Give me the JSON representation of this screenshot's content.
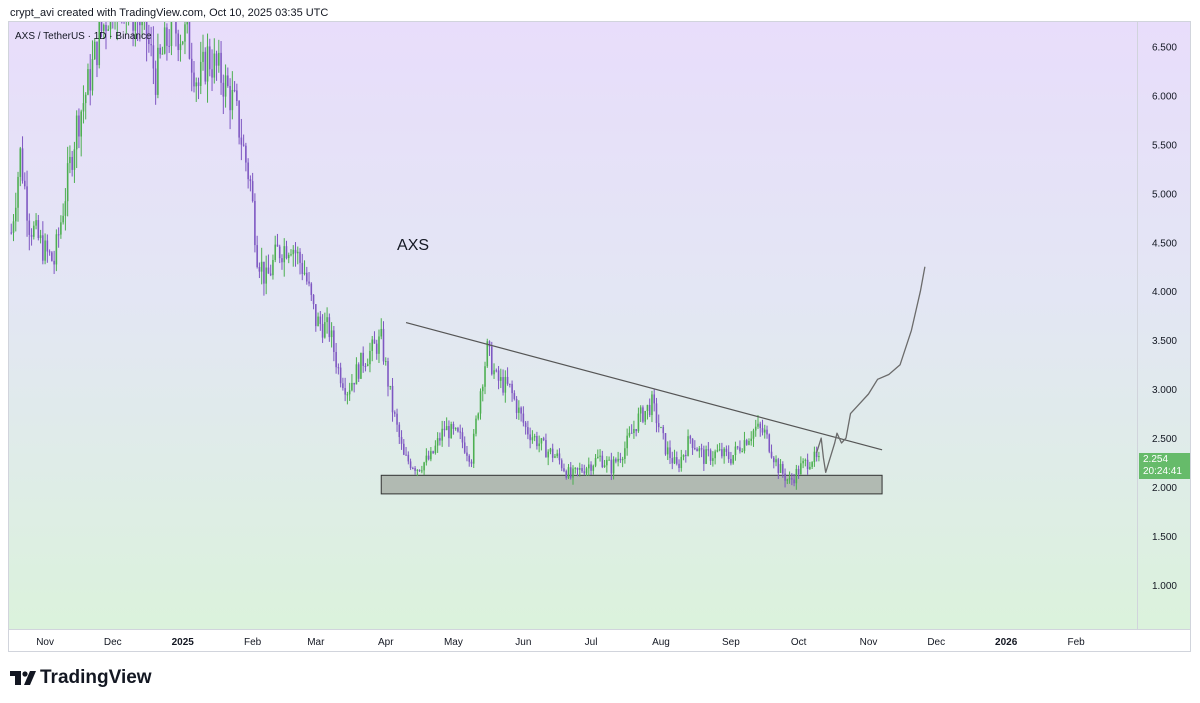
{
  "header": "crypt_avi created with TradingView.com, Oct 10, 2025 03:35 UTC",
  "symbol_line": "AXS / TetherUS · 1D · Binance",
  "brand": "TradingView",
  "price_tag": {
    "price": "2.254",
    "countdown": "20:24:41",
    "color": "#66bb6a"
  },
  "colors": {
    "up": "#4caf50",
    "down": "#7e57c2",
    "support_zone": "#a5aca5",
    "trendline": "#555555"
  },
  "chart_data": {
    "type": "candlestick",
    "title": "AXS",
    "xlabel": "",
    "ylabel": "",
    "yticks": [
      "1.000",
      "1.500",
      "2.000",
      "2.500",
      "3.000",
      "3.500",
      "4.000",
      "4.500",
      "5.000",
      "5.500",
      "6.000",
      "6.500"
    ],
    "ylim": [
      0.55,
      6.75
    ],
    "xticks": [
      {
        "label": "Nov",
        "date": "2024-11-01"
      },
      {
        "label": "Dec",
        "date": "2024-12-01"
      },
      {
        "label": "2025",
        "date": "2025-01-01"
      },
      {
        "label": "Feb",
        "date": "2025-02-01"
      },
      {
        "label": "Mar",
        "date": "2025-03-01"
      },
      {
        "label": "Apr",
        "date": "2025-04-01"
      },
      {
        "label": "May",
        "date": "2025-05-01"
      },
      {
        "label": "Jun",
        "date": "2025-06-01"
      },
      {
        "label": "Jul",
        "date": "2025-07-01"
      },
      {
        "label": "Aug",
        "date": "2025-08-01"
      },
      {
        "label": "Sep",
        "date": "2025-09-01"
      },
      {
        "label": "Oct",
        "date": "2025-10-01"
      },
      {
        "label": "Nov",
        "date": "2025-11-01"
      },
      {
        "label": "Dec",
        "date": "2025-12-01"
      },
      {
        "label": "2026",
        "date": "2026-01-01"
      },
      {
        "label": "Feb",
        "date": "2026-02-01"
      }
    ],
    "xlim": [
      "2024-10-16",
      "2026-02-28"
    ],
    "price_path": [
      [
        "2024-10-17",
        4.6
      ],
      [
        "2024-10-21",
        5.4
      ],
      [
        "2024-10-25",
        4.7
      ],
      [
        "2024-11-01",
        4.4
      ],
      [
        "2024-11-05",
        4.3
      ],
      [
        "2024-11-10",
        5.0
      ],
      [
        "2024-11-15",
        5.7
      ],
      [
        "2024-11-20",
        6.1
      ],
      [
        "2024-11-25",
        6.6
      ],
      [
        "2024-12-03",
        7.1
      ],
      [
        "2024-12-08",
        6.9
      ],
      [
        "2024-12-15",
        6.7
      ],
      [
        "2024-12-20",
        6.2
      ],
      [
        "2024-12-27",
        6.7
      ],
      [
        "2025-01-03",
        6.6
      ],
      [
        "2025-01-08",
        6.1
      ],
      [
        "2025-01-12",
        6.4
      ],
      [
        "2025-01-18",
        6.2
      ],
      [
        "2025-01-24",
        5.9
      ],
      [
        "2025-01-31",
        5.1
      ],
      [
        "2025-02-03",
        4.4
      ],
      [
        "2025-02-07",
        4.1
      ],
      [
        "2025-02-12",
        4.4
      ],
      [
        "2025-02-18",
        4.5
      ],
      [
        "2025-02-24",
        4.2
      ],
      [
        "2025-03-01",
        3.7
      ],
      [
        "2025-03-07",
        3.6
      ],
      [
        "2025-03-11",
        3.2
      ],
      [
        "2025-03-15",
        3.0
      ],
      [
        "2025-03-22",
        3.3
      ],
      [
        "2025-03-30",
        3.5
      ],
      [
        "2025-04-04",
        2.8
      ],
      [
        "2025-04-09",
        2.3
      ],
      [
        "2025-04-15",
        2.2
      ],
      [
        "2025-04-21",
        2.3
      ],
      [
        "2025-04-27",
        2.6
      ],
      [
        "2025-05-04",
        2.5
      ],
      [
        "2025-05-09",
        2.3
      ],
      [
        "2025-05-13",
        3.0
      ],
      [
        "2025-05-16",
        3.4
      ],
      [
        "2025-05-20",
        3.1
      ],
      [
        "2025-05-26",
        3.0
      ],
      [
        "2025-06-02",
        2.6
      ],
      [
        "2025-06-10",
        2.4
      ],
      [
        "2025-06-16",
        2.3
      ],
      [
        "2025-06-22",
        2.1
      ],
      [
        "2025-06-28",
        2.2
      ],
      [
        "2025-07-05",
        2.3
      ],
      [
        "2025-07-10",
        2.2
      ],
      [
        "2025-07-16",
        2.4
      ],
      [
        "2025-07-22",
        2.7
      ],
      [
        "2025-07-28",
        2.85
      ],
      [
        "2025-08-03",
        2.4
      ],
      [
        "2025-08-08",
        2.2
      ],
      [
        "2025-08-14",
        2.5
      ],
      [
        "2025-08-20",
        2.3
      ],
      [
        "2025-08-26",
        2.35
      ],
      [
        "2025-09-01",
        2.3
      ],
      [
        "2025-09-06",
        2.45
      ],
      [
        "2025-09-12",
        2.6
      ],
      [
        "2025-09-16",
        2.55
      ],
      [
        "2025-09-22",
        2.2
      ],
      [
        "2025-09-27",
        2.05
      ],
      [
        "2025-10-02",
        2.2
      ],
      [
        "2025-10-07",
        2.3
      ],
      [
        "2025-10-10",
        2.25
      ]
    ],
    "annotations": {
      "support_zone": {
        "from": "2025-03-30",
        "to": "2025-11-07",
        "low": 1.93,
        "high": 2.12
      },
      "trendline": [
        [
          "2025-04-10",
          3.68
        ],
        [
          "2025-11-07",
          2.38
        ]
      ],
      "projection": [
        [
          "2025-10-09",
          2.35
        ],
        [
          "2025-10-11",
          2.5
        ],
        [
          "2025-10-12",
          2.3
        ],
        [
          "2025-10-13",
          2.15
        ],
        [
          "2025-10-15",
          2.3
        ],
        [
          "2025-10-17",
          2.45
        ],
        [
          "2025-10-18",
          2.55
        ],
        [
          "2025-10-20",
          2.45
        ],
        [
          "2025-10-22",
          2.5
        ],
        [
          "2025-10-24",
          2.75
        ],
        [
          "2025-10-28",
          2.85
        ],
        [
          "2025-11-01",
          2.95
        ],
        [
          "2025-11-05",
          3.1
        ],
        [
          "2025-11-10",
          3.15
        ],
        [
          "2025-11-15",
          3.25
        ],
        [
          "2025-11-20",
          3.6
        ],
        [
          "2025-11-24",
          4.0
        ],
        [
          "2025-11-26",
          4.25
        ]
      ]
    }
  }
}
